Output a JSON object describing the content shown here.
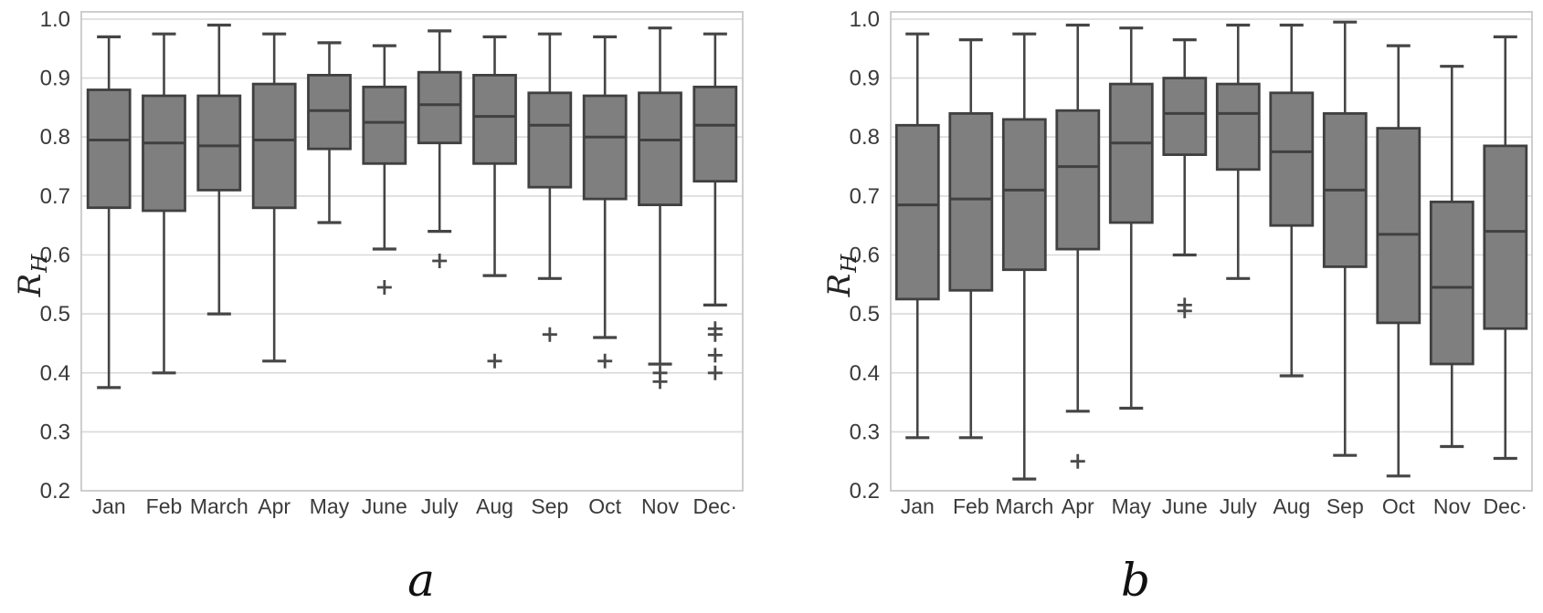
{
  "figure": {
    "caption_a": "a",
    "caption_b": "b",
    "ylabel_base": "R",
    "ylabel_sub": "H"
  },
  "style": {
    "box_fill": "#7f7f7f",
    "box_stroke": "#404040",
    "median_color": "#404040",
    "whisker_color": "#454545",
    "outlier_color": "#4a4a4a",
    "grid_color": "#d9d9d9",
    "frame_color": "#c8c8c8",
    "tick_text_color": "#3a3a3a",
    "background": "#ffffff"
  },
  "chart_data": [
    {
      "id": "a",
      "type": "boxplot",
      "panel_label": "a",
      "ylabel": "R_H",
      "ylim": [
        0.2,
        1.0
      ],
      "grid": true,
      "y_ticks": [
        "1.0",
        "0.9",
        "0.8",
        "0.7",
        "0.6",
        "0.5",
        "0.4",
        "0.3",
        "0.2"
      ],
      "categories": [
        "Jan",
        "Feb",
        "March",
        "Apr",
        "May",
        "June",
        "July",
        "Aug",
        "Sep",
        "Oct",
        "Nov",
        "Dec·"
      ],
      "series": [
        {
          "month": "Jan",
          "low": 0.375,
          "q1": 0.68,
          "median": 0.795,
          "q3": 0.88,
          "high": 0.97,
          "outliers": []
        },
        {
          "month": "Feb",
          "low": 0.4,
          "q1": 0.675,
          "median": 0.79,
          "q3": 0.87,
          "high": 0.975,
          "outliers": []
        },
        {
          "month": "March",
          "low": 0.5,
          "q1": 0.71,
          "median": 0.785,
          "q3": 0.87,
          "high": 0.99,
          "outliers": []
        },
        {
          "month": "Apr",
          "low": 0.42,
          "q1": 0.68,
          "median": 0.795,
          "q3": 0.89,
          "high": 0.975,
          "outliers": []
        },
        {
          "month": "May",
          "low": 0.655,
          "q1": 0.78,
          "median": 0.845,
          "q3": 0.905,
          "high": 0.96,
          "outliers": []
        },
        {
          "month": "June",
          "low": 0.61,
          "q1": 0.755,
          "median": 0.825,
          "q3": 0.885,
          "high": 0.955,
          "outliers": [
            0.545
          ]
        },
        {
          "month": "July",
          "low": 0.64,
          "q1": 0.79,
          "median": 0.855,
          "q3": 0.91,
          "high": 0.98,
          "outliers": [
            0.59
          ]
        },
        {
          "month": "Aug",
          "low": 0.565,
          "q1": 0.755,
          "median": 0.835,
          "q3": 0.905,
          "high": 0.97,
          "outliers": [
            0.42
          ]
        },
        {
          "month": "Sep",
          "low": 0.56,
          "q1": 0.715,
          "median": 0.82,
          "q3": 0.875,
          "high": 0.975,
          "outliers": [
            0.465
          ]
        },
        {
          "month": "Oct",
          "low": 0.46,
          "q1": 0.695,
          "median": 0.8,
          "q3": 0.87,
          "high": 0.97,
          "outliers": [
            0.42
          ]
        },
        {
          "month": "Nov",
          "low": 0.415,
          "q1": 0.685,
          "median": 0.795,
          "q3": 0.875,
          "high": 0.985,
          "outliers": [
            0.4,
            0.385
          ]
        },
        {
          "month": "Dec",
          "low": 0.515,
          "q1": 0.725,
          "median": 0.82,
          "q3": 0.885,
          "high": 0.975,
          "outliers": [
            0.475,
            0.465,
            0.43,
            0.4
          ]
        }
      ]
    },
    {
      "id": "b",
      "type": "boxplot",
      "panel_label": "b",
      "ylabel": "R_H",
      "ylim": [
        0.2,
        1.0
      ],
      "grid": true,
      "y_ticks": [
        "1.0",
        "0.9",
        "0.8",
        "0.7",
        "0.6",
        "0.5",
        "0.4",
        "0.3",
        "0.2"
      ],
      "categories": [
        "Jan",
        "Feb",
        "March",
        "Apr",
        "May",
        "June",
        "July",
        "Aug",
        "Sep",
        "Oct",
        "Nov",
        "Dec·"
      ],
      "series": [
        {
          "month": "Jan",
          "low": 0.29,
          "q1": 0.525,
          "median": 0.685,
          "q3": 0.82,
          "high": 0.975,
          "outliers": []
        },
        {
          "month": "Feb",
          "low": 0.29,
          "q1": 0.54,
          "median": 0.695,
          "q3": 0.84,
          "high": 0.965,
          "outliers": []
        },
        {
          "month": "March",
          "low": 0.22,
          "q1": 0.575,
          "median": 0.71,
          "q3": 0.83,
          "high": 0.975,
          "outliers": []
        },
        {
          "month": "Apr",
          "low": 0.335,
          "q1": 0.61,
          "median": 0.75,
          "q3": 0.845,
          "high": 0.99,
          "outliers": [
            0.25
          ]
        },
        {
          "month": "May",
          "low": 0.34,
          "q1": 0.655,
          "median": 0.79,
          "q3": 0.89,
          "high": 0.985,
          "outliers": []
        },
        {
          "month": "June",
          "low": 0.6,
          "q1": 0.77,
          "median": 0.84,
          "q3": 0.9,
          "high": 0.965,
          "outliers": [
            0.515,
            0.505
          ]
        },
        {
          "month": "July",
          "low": 0.56,
          "q1": 0.745,
          "median": 0.84,
          "q3": 0.89,
          "high": 0.99,
          "outliers": []
        },
        {
          "month": "Aug",
          "low": 0.395,
          "q1": 0.65,
          "median": 0.775,
          "q3": 0.875,
          "high": 0.99,
          "outliers": []
        },
        {
          "month": "Sep",
          "low": 0.26,
          "q1": 0.58,
          "median": 0.71,
          "q3": 0.84,
          "high": 0.995,
          "outliers": []
        },
        {
          "month": "Oct",
          "low": 0.225,
          "q1": 0.485,
          "median": 0.635,
          "q3": 0.815,
          "high": 0.955,
          "outliers": []
        },
        {
          "month": "Nov",
          "low": 0.275,
          "q1": 0.415,
          "median": 0.545,
          "q3": 0.69,
          "high": 0.92,
          "outliers": []
        },
        {
          "month": "Dec",
          "low": 0.255,
          "q1": 0.475,
          "median": 0.64,
          "q3": 0.785,
          "high": 0.97,
          "outliers": []
        }
      ]
    }
  ]
}
